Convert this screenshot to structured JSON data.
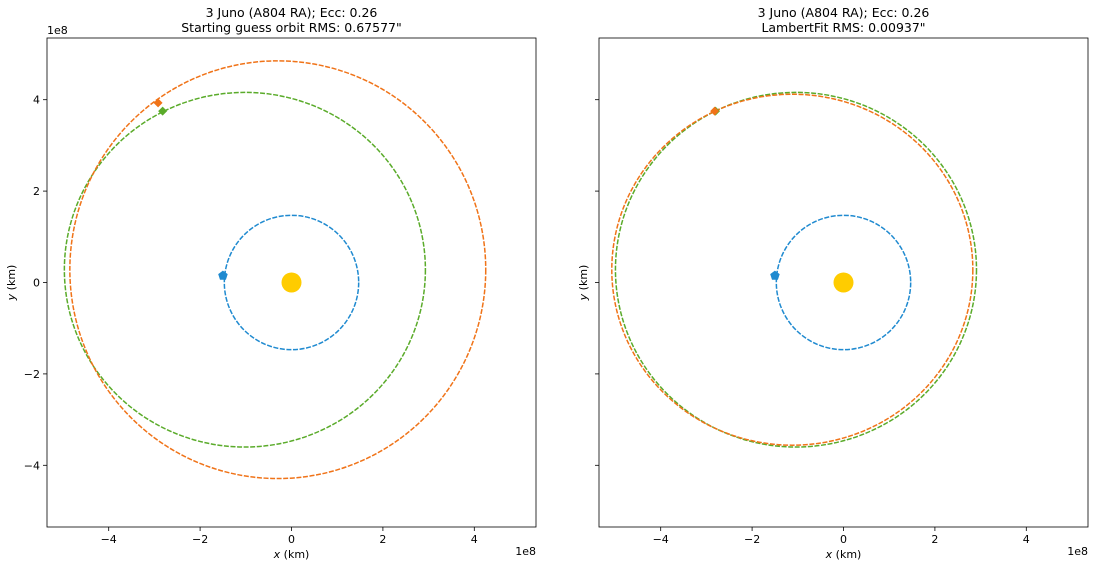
{
  "figure": {
    "background": "#ffffff"
  },
  "chart_data": [
    {
      "type": "line",
      "title_line1": "3 Juno (A804 RA); Ecc: 0.26",
      "title_line2": "Starting guess orbit RMS: 0.67577\"",
      "xlabel_var": "x",
      "xlabel_unit": "(km)",
      "ylabel_var": "y",
      "ylabel_unit": "(km)",
      "offset_text": "1e8",
      "xlim": [
        -5.35,
        5.35
      ],
      "ylim": [
        -5.35,
        5.35
      ],
      "xticks": [
        -4,
        -2,
        0,
        2,
        4
      ],
      "yticks": [
        -4,
        -2,
        0,
        2,
        4
      ],
      "xticklabels": [
        "−4",
        "−2",
        "0",
        "2",
        "4"
      ],
      "yticklabels": [
        "−4",
        "−2",
        "0",
        "2",
        "4"
      ],
      "show_yticklabels": true,
      "grid": false,
      "sun": {
        "x": 0,
        "y": 0,
        "color": "#ffcc00"
      },
      "series": [
        {
          "role": "earth-orbit",
          "color": "#1f8ad0",
          "cx": 0,
          "cy": 0,
          "a": 1.47,
          "b": 1.47,
          "marker": {
            "x": -1.5,
            "y": 0.15,
            "shape": "pentagon"
          }
        },
        {
          "role": "fitted-orbit",
          "color": "#5aab2a",
          "cx": -1.02,
          "cy": 0.28,
          "a": 3.95,
          "b": 3.88,
          "marker": {
            "x": -2.82,
            "y": 3.75,
            "shape": "diamond"
          }
        },
        {
          "role": "guess-orbit",
          "color": "#f07318",
          "cx": -0.3,
          "cy": 0.28,
          "a": 4.55,
          "b": 4.57,
          "marker": {
            "x": -2.92,
            "y": 3.93,
            "shape": "diamond"
          }
        }
      ]
    },
    {
      "type": "line",
      "title_line1": "3 Juno (A804 RA); Ecc: 0.26",
      "title_line2": "LambertFit RMS: 0.00937\"",
      "xlabel_var": "x",
      "xlabel_unit": "(km)",
      "ylabel_var": "y",
      "ylabel_unit": "(km)",
      "offset_text": "1e8",
      "xlim": [
        -5.35,
        5.35
      ],
      "ylim": [
        -5.35,
        5.35
      ],
      "xticks": [
        -4,
        -2,
        0,
        2,
        4
      ],
      "yticks": [
        -4,
        -2,
        0,
        2,
        4
      ],
      "xticklabels": [
        "−4",
        "−2",
        "0",
        "2",
        "4"
      ],
      "yticklabels": [
        "",
        "",
        "",
        "",
        ""
      ],
      "show_yticklabels": false,
      "grid": false,
      "sun": {
        "x": 0,
        "y": 0,
        "color": "#ffcc00"
      },
      "series": [
        {
          "role": "earth-orbit",
          "color": "#1f8ad0",
          "cx": 0,
          "cy": 0,
          "a": 1.47,
          "b": 1.47,
          "marker": {
            "x": -1.5,
            "y": 0.15,
            "shape": "pentagon"
          }
        },
        {
          "role": "fitted-orbit",
          "color": "#5aab2a",
          "cx": -1.04,
          "cy": 0.28,
          "a": 3.95,
          "b": 3.88,
          "marker": {
            "x": -2.8,
            "y": 3.75,
            "shape": "diamond"
          }
        },
        {
          "role": "lambert-orbit",
          "color": "#f07318",
          "cx": -1.12,
          "cy": 0.28,
          "a": 3.95,
          "b": 3.84,
          "marker": {
            "x": -2.82,
            "y": 3.75,
            "shape": "diamond"
          }
        }
      ]
    }
  ]
}
